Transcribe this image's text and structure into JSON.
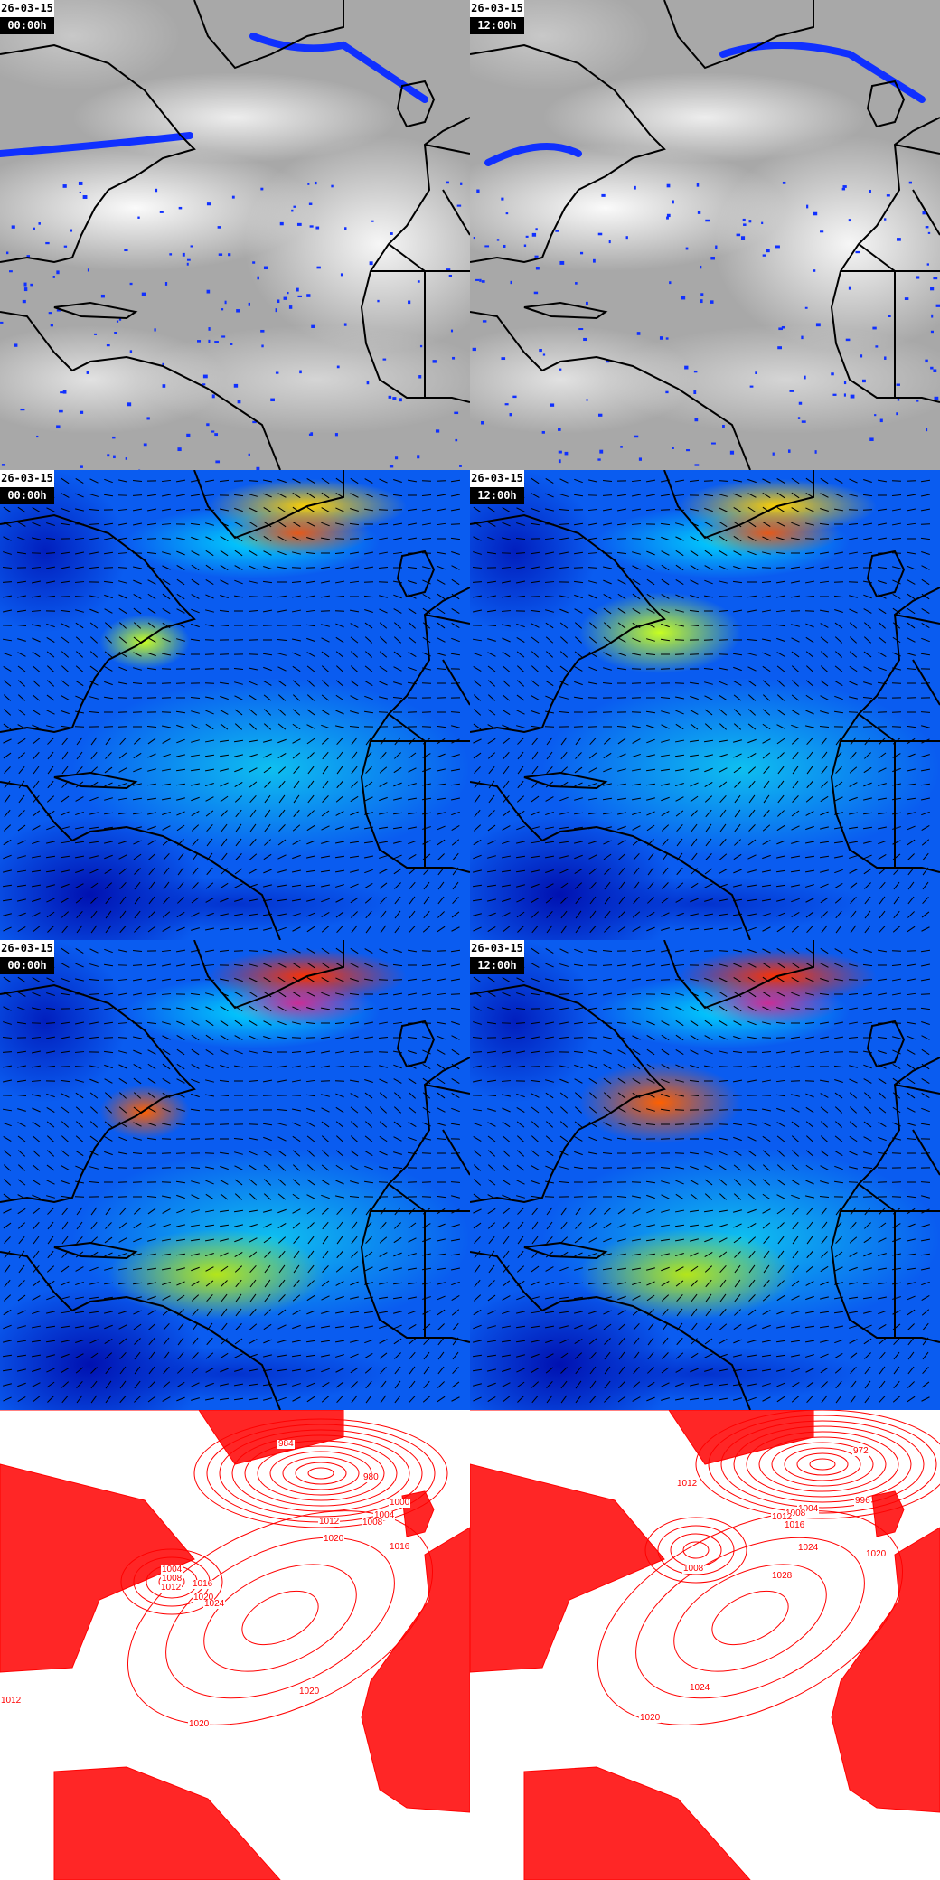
{
  "panels": [
    {
      "kind": "satellite",
      "date": "26-03-15",
      "time": "00:00h"
    },
    {
      "kind": "satellite",
      "date": "26-03-15",
      "time": "12:00h"
    },
    {
      "kind": "wind-low",
      "date": "26-03-15",
      "time": "00:00h"
    },
    {
      "kind": "wind-low",
      "date": "26-03-15",
      "time": "12:00h"
    },
    {
      "kind": "wind-high",
      "date": "26-03-15",
      "time": "00:00h"
    },
    {
      "kind": "wind-high",
      "date": "26-03-15",
      "time": "12:00h"
    },
    {
      "kind": "pressure",
      "isobar_labels": [
        "984",
        "980",
        "1000",
        "1004",
        "1012",
        "1008",
        "1020",
        "1016",
        "1004",
        "1008",
        "1012",
        "1016",
        "1020",
        "1024",
        "1020",
        "1020",
        "1012"
      ]
    },
    {
      "kind": "pressure",
      "isobar_labels": [
        "1012",
        "972",
        "996",
        "1004",
        "1008",
        "1012",
        "1016",
        "1024",
        "1020",
        "1008",
        "1028",
        "1024",
        "1020"
      ]
    }
  ],
  "colors": {
    "coast": "#000000",
    "isobar": "#ff0000",
    "wind_base": "#0a5cf0",
    "wind_calm": "#0010b0",
    "precip": "#1030ff"
  }
}
